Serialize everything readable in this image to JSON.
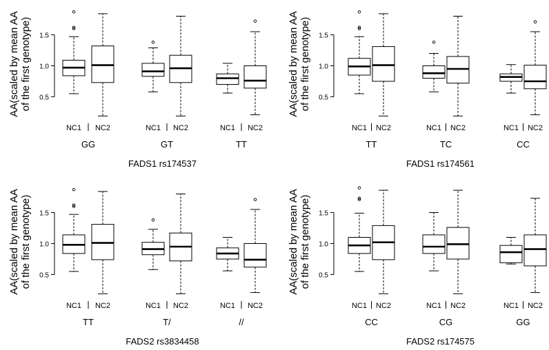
{
  "chart_data": [
    {
      "type": "box",
      "xlabel": "FADS1 rs174537",
      "ylabel": "AA(scaled by mean AA of the first genotype)",
      "ylim": [
        0.15,
        1.95
      ],
      "yticks": [
        "0.5",
        "1.0",
        "1.5"
      ],
      "grid": false,
      "groups": [
        {
          "label": "GG",
          "boxes": [
            {
              "name": "NC1",
              "min": 0.55,
              "q1": 0.84,
              "median": 0.97,
              "q3": 1.09,
              "max": 1.47,
              "outliers": [
                1.87,
                1.62,
                1.6
              ]
            },
            {
              "name": "NC2",
              "min": 0.19,
              "q1": 0.73,
              "median": 1.01,
              "q3": 1.32,
              "max": 1.84,
              "outliers": []
            }
          ]
        },
        {
          "label": "GT",
          "boxes": [
            {
              "name": "NC1",
              "min": 0.58,
              "q1": 0.83,
              "median": 0.91,
              "q3": 1.04,
              "max": 1.29,
              "outliers": [
                1.38
              ]
            },
            {
              "name": "NC2",
              "min": 0.19,
              "q1": 0.73,
              "median": 0.96,
              "q3": 1.17,
              "max": 1.8,
              "outliers": []
            }
          ]
        },
        {
          "label": "TT",
          "boxes": [
            {
              "name": "NC1",
              "min": 0.56,
              "q1": 0.7,
              "median": 0.8,
              "q3": 0.87,
              "max": 1.04,
              "outliers": []
            },
            {
              "name": "NC2",
              "min": 0.21,
              "q1": 0.64,
              "median": 0.76,
              "q3": 1.0,
              "max": 1.55,
              "outliers": [
                1.72
              ]
            }
          ]
        }
      ]
    },
    {
      "type": "box",
      "xlabel": "FADS1 rs174561",
      "ylabel": "AA(scaled by mean AA of the first genotype)",
      "ylim": [
        0.15,
        1.95
      ],
      "yticks": [
        "0.5",
        "1.0",
        "1.5"
      ],
      "grid": false,
      "groups": [
        {
          "label": "TT",
          "boxes": [
            {
              "name": "NC1",
              "min": 0.55,
              "q1": 0.85,
              "median": 0.99,
              "q3": 1.12,
              "max": 1.47,
              "outliers": [
                1.87,
                1.62,
                1.6
              ]
            },
            {
              "name": "NC2",
              "min": 0.19,
              "q1": 0.75,
              "median": 1.01,
              "q3": 1.31,
              "max": 1.84,
              "outliers": []
            }
          ]
        },
        {
          "label": "TC",
          "boxes": [
            {
              "name": "NC1",
              "min": 0.58,
              "q1": 0.8,
              "median": 0.88,
              "q3": 1.0,
              "max": 1.2,
              "outliers": [
                1.38
              ]
            },
            {
              "name": "NC2",
              "min": 0.19,
              "q1": 0.72,
              "median": 0.95,
              "q3": 1.15,
              "max": 1.8,
              "outliers": []
            }
          ]
        },
        {
          "label": "CC",
          "boxes": [
            {
              "name": "NC1",
              "min": 0.56,
              "q1": 0.75,
              "median": 0.82,
              "q3": 0.87,
              "max": 1.02,
              "outliers": []
            },
            {
              "name": "NC2",
              "min": 0.21,
              "q1": 0.63,
              "median": 0.75,
              "q3": 1.01,
              "max": 1.55,
              "outliers": [
                1.71
              ]
            }
          ]
        }
      ]
    },
    {
      "type": "box",
      "xlabel": "FADS2 rs3834458",
      "ylabel": "AA(scaled by mean AA of the first genotype)",
      "ylim": [
        0.15,
        1.95
      ],
      "yticks": [
        "0.5",
        "1.0",
        "1.5"
      ],
      "grid": false,
      "groups": [
        {
          "label": "TT",
          "boxes": [
            {
              "name": "NC1",
              "min": 0.55,
              "q1": 0.84,
              "median": 0.98,
              "q3": 1.14,
              "max": 1.47,
              "outliers": [
                1.87,
                1.62,
                1.6
              ]
            },
            {
              "name": "NC2",
              "min": 0.19,
              "q1": 0.74,
              "median": 1.01,
              "q3": 1.31,
              "max": 1.84,
              "outliers": []
            }
          ]
        },
        {
          "label": "T/",
          "boxes": [
            {
              "name": "NC1",
              "min": 0.58,
              "q1": 0.82,
              "median": 0.91,
              "q3": 1.02,
              "max": 1.23,
              "outliers": [
                1.38
              ]
            },
            {
              "name": "NC2",
              "min": 0.19,
              "q1": 0.72,
              "median": 0.95,
              "q3": 1.17,
              "max": 1.8,
              "outliers": []
            }
          ]
        },
        {
          "label": "//",
          "boxes": [
            {
              "name": "NC1",
              "min": 0.56,
              "q1": 0.75,
              "median": 0.84,
              "q3": 0.93,
              "max": 1.1,
              "outliers": []
            },
            {
              "name": "NC2",
              "min": 0.21,
              "q1": 0.62,
              "median": 0.74,
              "q3": 1.0,
              "max": 1.55,
              "outliers": [
                1.71
              ]
            }
          ]
        }
      ]
    },
    {
      "type": "box",
      "xlabel": "FADS2 rs174575",
      "ylabel": "AA(scaled by mean AA of the first genotype)",
      "ylim": [
        0.15,
        1.95
      ],
      "yticks": [
        "0.5",
        "1.0",
        "1.5"
      ],
      "grid": false,
      "groups": [
        {
          "label": "CC",
          "boxes": [
            {
              "name": "NC1",
              "min": 0.55,
              "q1": 0.84,
              "median": 0.97,
              "q3": 1.1,
              "max": 1.49,
              "outliers": [
                1.9,
                1.73,
                1.71
              ]
            },
            {
              "name": "NC2",
              "min": 0.19,
              "q1": 0.74,
              "median": 1.02,
              "q3": 1.29,
              "max": 1.86,
              "outliers": []
            }
          ]
        },
        {
          "label": "CG",
          "boxes": [
            {
              "name": "NC1",
              "min": 0.56,
              "q1": 0.84,
              "median": 0.95,
              "q3": 1.14,
              "max": 1.5,
              "outliers": []
            },
            {
              "name": "NC2",
              "min": 0.19,
              "q1": 0.75,
              "median": 0.99,
              "q3": 1.26,
              "max": 1.86,
              "outliers": []
            }
          ]
        },
        {
          "label": "GG",
          "boxes": [
            {
              "name": "NC1",
              "min": 0.67,
              "q1": 0.69,
              "median": 0.86,
              "q3": 0.97,
              "max": 1.1,
              "outliers": []
            },
            {
              "name": "NC2",
              "min": 0.21,
              "q1": 0.64,
              "median": 0.91,
              "q3": 1.14,
              "max": 1.73,
              "outliers": []
            }
          ]
        }
      ]
    }
  ]
}
